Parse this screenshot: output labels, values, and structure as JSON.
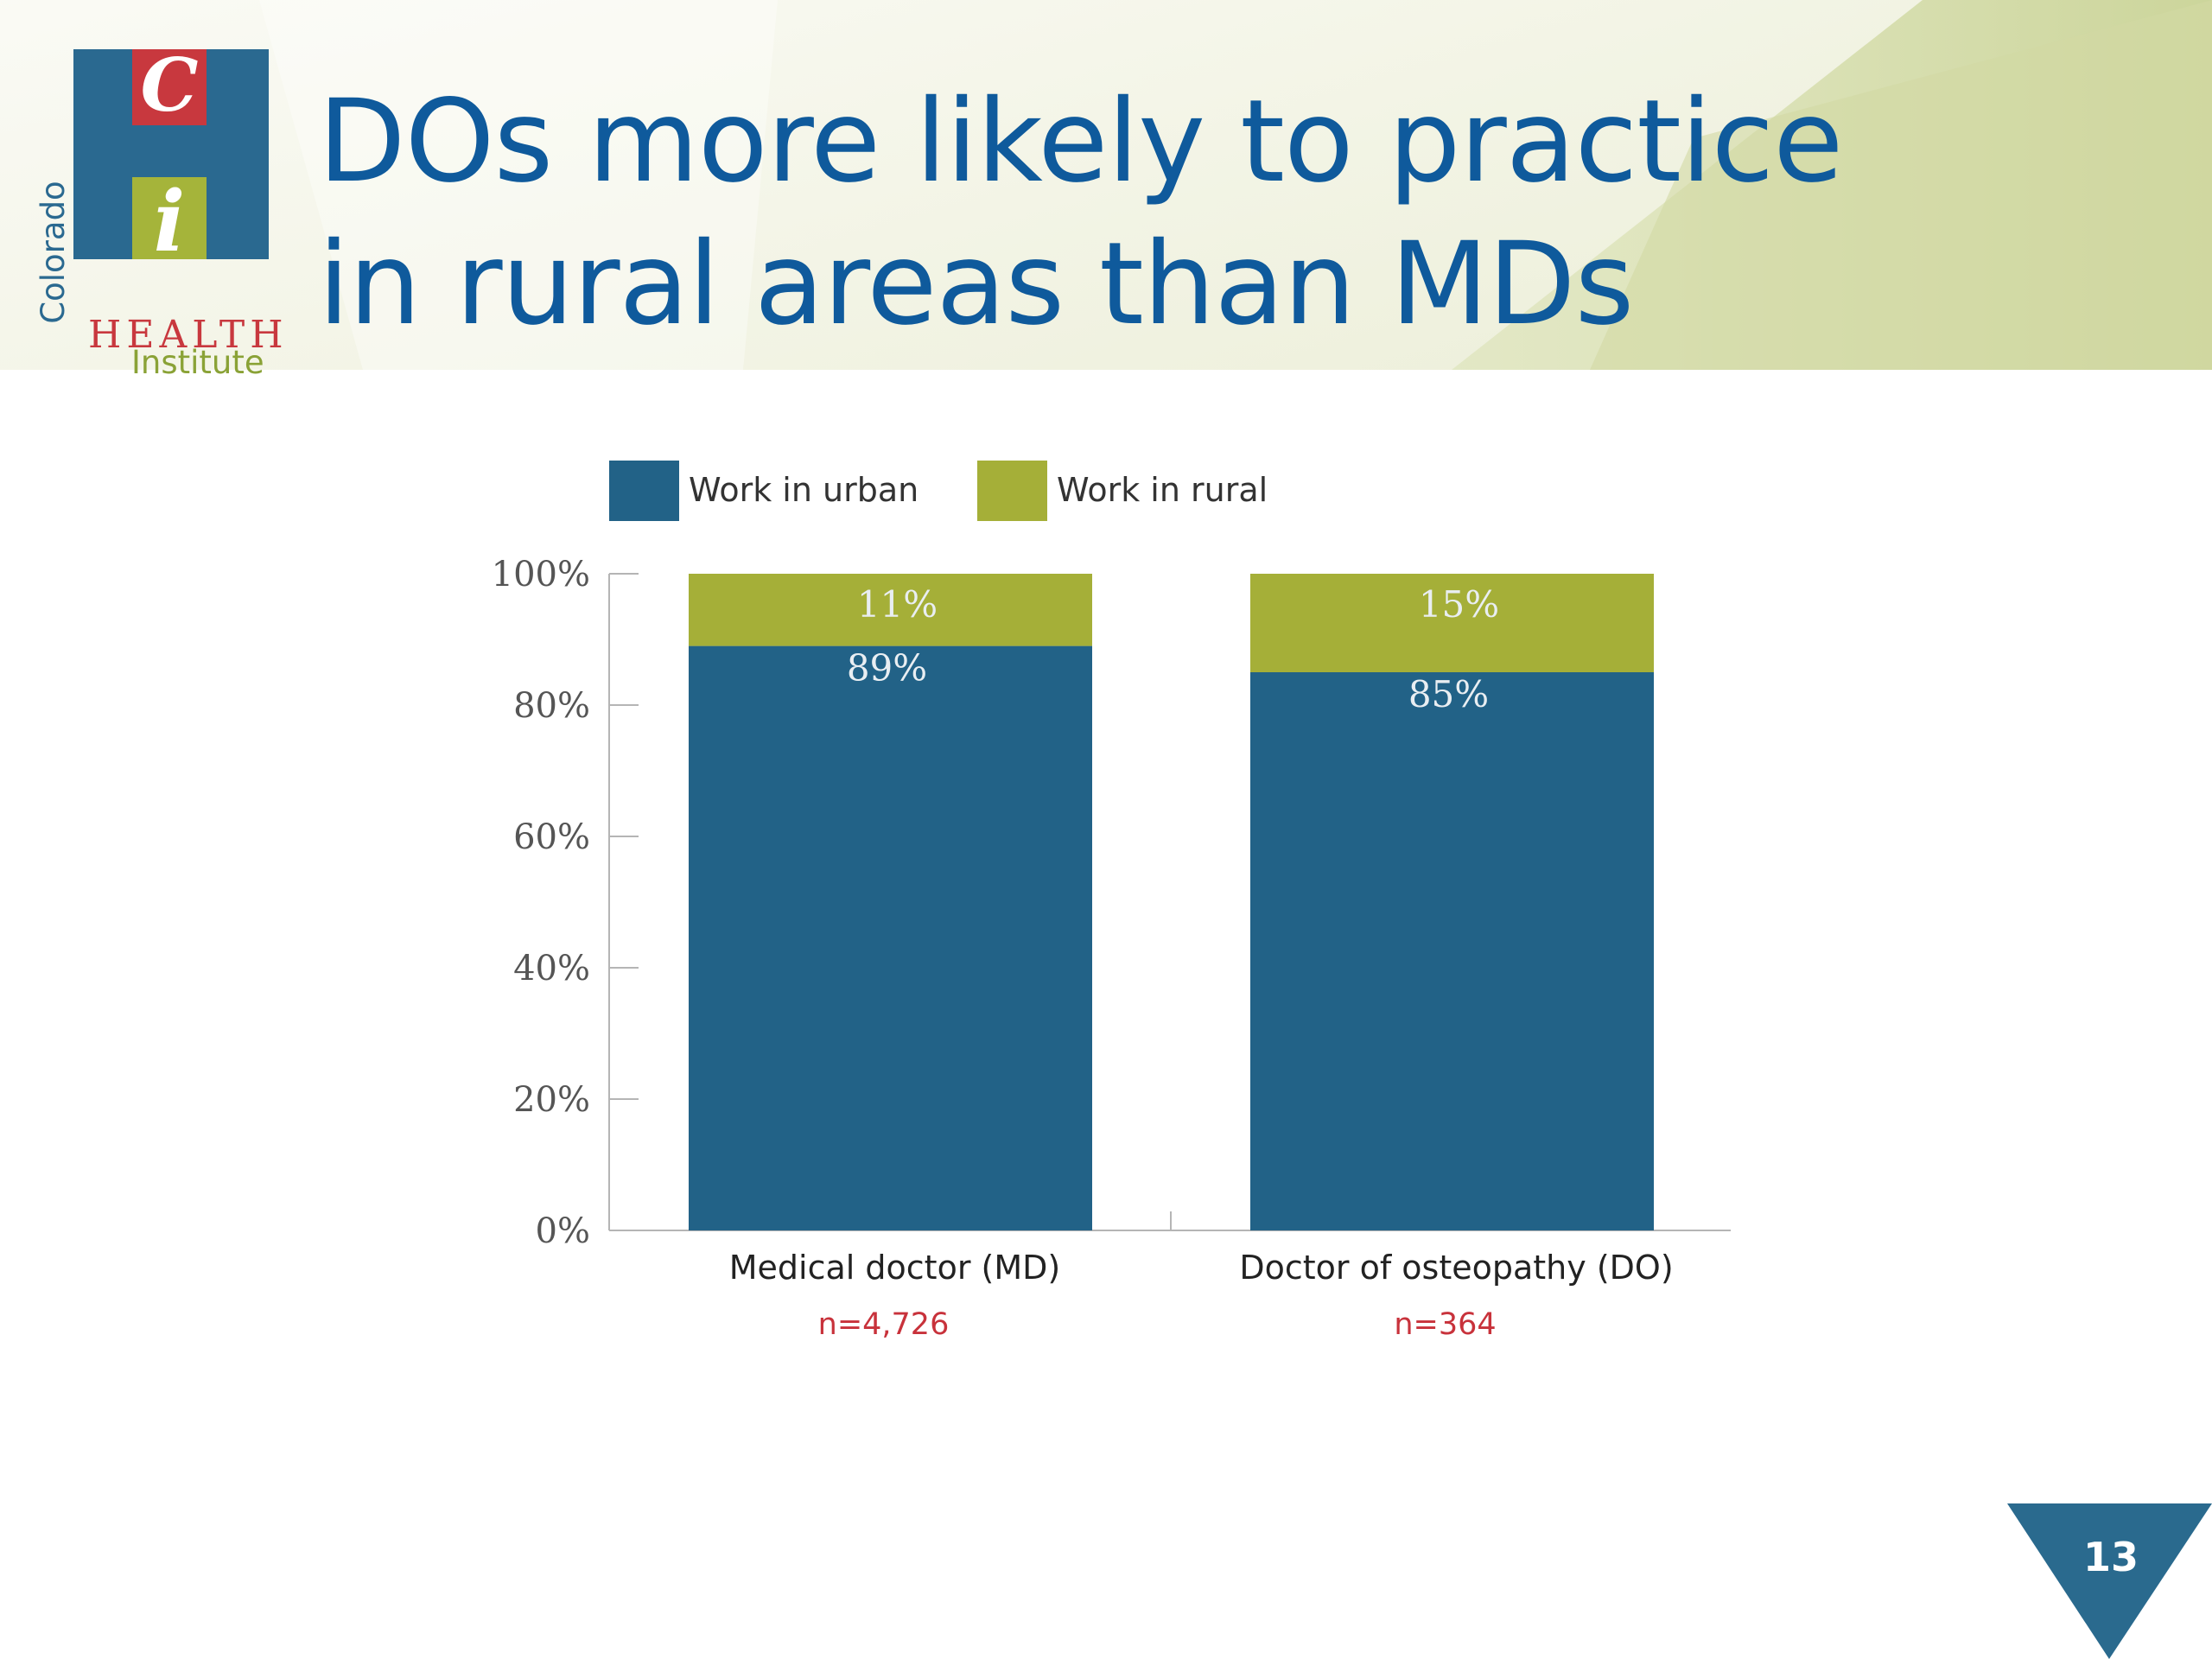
{
  "header": {
    "title": "DOs more likely to practice in rural areas than MDs",
    "logo": {
      "letters": [
        "C",
        "i"
      ],
      "wordmark": "HEALTH",
      "sub": "Institute",
      "vertical": "Colorado"
    }
  },
  "colors": {
    "urban": "#226287",
    "rural": "#a5af38",
    "title": "#0f5a9c",
    "sample_note": "#c8323b"
  },
  "chart_data": {
    "type": "bar",
    "stacked": true,
    "categories": [
      "Medical doctor (MD)",
      "Doctor of osteopathy (DO)"
    ],
    "category_notes": [
      "n=4,726",
      "n=364"
    ],
    "series": [
      {
        "name": "Work in urban",
        "values": [
          89,
          85
        ],
        "labels": [
          "89%",
          "85%"
        ]
      },
      {
        "name": "Work in rural",
        "values": [
          11,
          15
        ],
        "labels": [
          "11%",
          "15%"
        ]
      }
    ],
    "ylim": [
      0,
      100
    ],
    "yticks": [
      0,
      20,
      40,
      60,
      80,
      100
    ],
    "ytick_labels": [
      "0%",
      "20%",
      "40%",
      "60%",
      "80%",
      "100%"
    ],
    "legend": "top",
    "grid": false
  },
  "footer": {
    "page_number": "13"
  }
}
